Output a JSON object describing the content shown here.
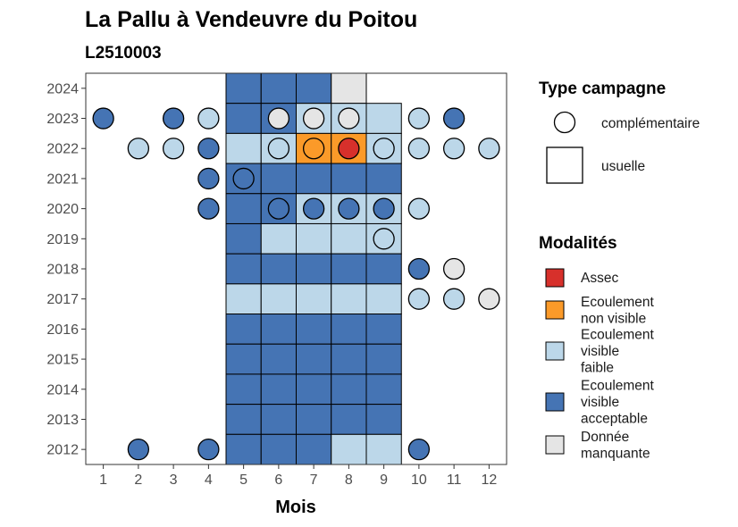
{
  "chart_data": {
    "type": "heatmap",
    "title": "La Pallu à Vendeuvre du Poitou",
    "subtitle": "L2510003",
    "xlabel": "Mois",
    "ylabel": "",
    "x_ticks": [
      1,
      2,
      3,
      4,
      5,
      6,
      7,
      8,
      9,
      10,
      11,
      12
    ],
    "y_ticks": [
      2012,
      2013,
      2014,
      2015,
      2016,
      2017,
      2018,
      2019,
      2020,
      2021,
      2022,
      2023,
      2024
    ],
    "xlim": [
      0.5,
      12.5
    ],
    "ylim": [
      2011.5,
      2024.5
    ],
    "grid": false,
    "colors": {
      "Assec": "#d7302b",
      "Ecoulement non visible": "#fb9a29",
      "Ecoulement visible faible": "#bcd7e9",
      "Ecoulement visible acceptable": "#4574b4",
      "Donnée manquante": "#e5e5e5"
    },
    "legends": {
      "type_campagne": {
        "title": "Type campagne",
        "items": [
          {
            "key": "complementaire",
            "label": "complémentaire",
            "shape": "circle"
          },
          {
            "key": "usuelle",
            "label": "usuelle",
            "shape": "square"
          }
        ]
      },
      "modalites": {
        "title": "Modalités",
        "items": [
          {
            "key": "Assec",
            "lines": [
              "Assec"
            ]
          },
          {
            "key": "Ecoulement non visible",
            "lines": [
              "Ecoulement",
              "non visible"
            ]
          },
          {
            "key": "Ecoulement visible faible",
            "lines": [
              "Ecoulement",
              "visible",
              "faible"
            ]
          },
          {
            "key": "Ecoulement visible acceptable",
            "lines": [
              "Ecoulement",
              "visible",
              "acceptable"
            ]
          },
          {
            "key": "Donnée manquante",
            "lines": [
              "Donnée",
              "manquante"
            ]
          }
        ]
      }
    },
    "usuelle": [
      {
        "year": 2024,
        "month": 5,
        "modalite": "Ecoulement visible acceptable"
      },
      {
        "year": 2024,
        "month": 6,
        "modalite": "Ecoulement visible acceptable"
      },
      {
        "year": 2024,
        "month": 7,
        "modalite": "Ecoulement visible acceptable"
      },
      {
        "year": 2024,
        "month": 8,
        "modalite": "Donnée manquante"
      },
      {
        "year": 2023,
        "month": 5,
        "modalite": "Ecoulement visible acceptable"
      },
      {
        "year": 2023,
        "month": 6,
        "modalite": "Ecoulement visible acceptable"
      },
      {
        "year": 2023,
        "month": 7,
        "modalite": "Ecoulement visible faible"
      },
      {
        "year": 2023,
        "month": 8,
        "modalite": "Ecoulement visible faible"
      },
      {
        "year": 2023,
        "month": 9,
        "modalite": "Ecoulement visible faible"
      },
      {
        "year": 2022,
        "month": 5,
        "modalite": "Ecoulement visible faible"
      },
      {
        "year": 2022,
        "month": 6,
        "modalite": "Ecoulement visible faible"
      },
      {
        "year": 2022,
        "month": 7,
        "modalite": "Ecoulement non visible"
      },
      {
        "year": 2022,
        "month": 8,
        "modalite": "Ecoulement non visible"
      },
      {
        "year": 2022,
        "month": 9,
        "modalite": "Ecoulement visible faible"
      },
      {
        "year": 2021,
        "month": 5,
        "modalite": "Ecoulement visible acceptable"
      },
      {
        "year": 2021,
        "month": 6,
        "modalite": "Ecoulement visible acceptable"
      },
      {
        "year": 2021,
        "month": 7,
        "modalite": "Ecoulement visible acceptable"
      },
      {
        "year": 2021,
        "month": 8,
        "modalite": "Ecoulement visible acceptable"
      },
      {
        "year": 2021,
        "month": 9,
        "modalite": "Ecoulement visible acceptable"
      },
      {
        "year": 2020,
        "month": 5,
        "modalite": "Ecoulement visible acceptable"
      },
      {
        "year": 2020,
        "month": 6,
        "modalite": "Ecoulement visible acceptable"
      },
      {
        "year": 2020,
        "month": 7,
        "modalite": "Ecoulement visible faible"
      },
      {
        "year": 2020,
        "month": 8,
        "modalite": "Ecoulement visible faible"
      },
      {
        "year": 2020,
        "month": 9,
        "modalite": "Ecoulement visible faible"
      },
      {
        "year": 2019,
        "month": 5,
        "modalite": "Ecoulement visible acceptable"
      },
      {
        "year": 2019,
        "month": 6,
        "modalite": "Ecoulement visible faible"
      },
      {
        "year": 2019,
        "month": 7,
        "modalite": "Ecoulement visible faible"
      },
      {
        "year": 2019,
        "month": 8,
        "modalite": "Ecoulement visible faible"
      },
      {
        "year": 2019,
        "month": 9,
        "modalite": "Ecoulement visible faible"
      },
      {
        "year": 2018,
        "month": 5,
        "modalite": "Ecoulement visible acceptable"
      },
      {
        "year": 2018,
        "month": 6,
        "modalite": "Ecoulement visible acceptable"
      },
      {
        "year": 2018,
        "month": 7,
        "modalite": "Ecoulement visible acceptable"
      },
      {
        "year": 2018,
        "month": 8,
        "modalite": "Ecoulement visible acceptable"
      },
      {
        "year": 2018,
        "month": 9,
        "modalite": "Ecoulement visible acceptable"
      },
      {
        "year": 2017,
        "month": 5,
        "modalite": "Ecoulement visible faible"
      },
      {
        "year": 2017,
        "month": 6,
        "modalite": "Ecoulement visible faible"
      },
      {
        "year": 2017,
        "month": 7,
        "modalite": "Ecoulement visible faible"
      },
      {
        "year": 2017,
        "month": 8,
        "modalite": "Ecoulement visible faible"
      },
      {
        "year": 2017,
        "month": 9,
        "modalite": "Ecoulement visible faible"
      },
      {
        "year": 2016,
        "month": 5,
        "modalite": "Ecoulement visible acceptable"
      },
      {
        "year": 2016,
        "month": 6,
        "modalite": "Ecoulement visible acceptable"
      },
      {
        "year": 2016,
        "month": 7,
        "modalite": "Ecoulement visible acceptable"
      },
      {
        "year": 2016,
        "month": 8,
        "modalite": "Ecoulement visible acceptable"
      },
      {
        "year": 2016,
        "month": 9,
        "modalite": "Ecoulement visible acceptable"
      },
      {
        "year": 2015,
        "month": 5,
        "modalite": "Ecoulement visible acceptable"
      },
      {
        "year": 2015,
        "month": 6,
        "modalite": "Ecoulement visible acceptable"
      },
      {
        "year": 2015,
        "month": 7,
        "modalite": "Ecoulement visible acceptable"
      },
      {
        "year": 2015,
        "month": 8,
        "modalite": "Ecoulement visible acceptable"
      },
      {
        "year": 2015,
        "month": 9,
        "modalite": "Ecoulement visible acceptable"
      },
      {
        "year": 2014,
        "month": 5,
        "modalite": "Ecoulement visible acceptable"
      },
      {
        "year": 2014,
        "month": 6,
        "modalite": "Ecoulement visible acceptable"
      },
      {
        "year": 2014,
        "month": 7,
        "modalite": "Ecoulement visible acceptable"
      },
      {
        "year": 2014,
        "month": 8,
        "modalite": "Ecoulement visible acceptable"
      },
      {
        "year": 2014,
        "month": 9,
        "modalite": "Ecoulement visible acceptable"
      },
      {
        "year": 2013,
        "month": 5,
        "modalite": "Ecoulement visible acceptable"
      },
      {
        "year": 2013,
        "month": 6,
        "modalite": "Ecoulement visible acceptable"
      },
      {
        "year": 2013,
        "month": 7,
        "modalite": "Ecoulement visible acceptable"
      },
      {
        "year": 2013,
        "month": 8,
        "modalite": "Ecoulement visible acceptable"
      },
      {
        "year": 2013,
        "month": 9,
        "modalite": "Ecoulement visible acceptable"
      },
      {
        "year": 2012,
        "month": 5,
        "modalite": "Ecoulement visible acceptable"
      },
      {
        "year": 2012,
        "month": 6,
        "modalite": "Ecoulement visible acceptable"
      },
      {
        "year": 2012,
        "month": 7,
        "modalite": "Ecoulement visible acceptable"
      },
      {
        "year": 2012,
        "month": 8,
        "modalite": "Ecoulement visible faible"
      },
      {
        "year": 2012,
        "month": 9,
        "modalite": "Ecoulement visible faible"
      }
    ],
    "complementaire": [
      {
        "year": 2023,
        "month": 1,
        "modalite": "Ecoulement visible acceptable"
      },
      {
        "year": 2023,
        "month": 3,
        "modalite": "Ecoulement visible acceptable"
      },
      {
        "year": 2023,
        "month": 4,
        "modalite": "Ecoulement visible faible"
      },
      {
        "year": 2023,
        "month": 6,
        "modalite": "Donnée manquante"
      },
      {
        "year": 2023,
        "month": 7,
        "modalite": "Donnée manquante"
      },
      {
        "year": 2023,
        "month": 8,
        "modalite": "Donnée manquante"
      },
      {
        "year": 2023,
        "month": 10,
        "modalite": "Ecoulement visible faible"
      },
      {
        "year": 2023,
        "month": 11,
        "modalite": "Ecoulement visible acceptable"
      },
      {
        "year": 2022,
        "month": 2,
        "modalite": "Ecoulement visible faible"
      },
      {
        "year": 2022,
        "month": 3,
        "modalite": "Ecoulement visible faible"
      },
      {
        "year": 2022,
        "month": 4,
        "modalite": "Ecoulement visible acceptable"
      },
      {
        "year": 2022,
        "month": 6,
        "modalite": "Ecoulement visible faible"
      },
      {
        "year": 2022,
        "month": 7,
        "modalite": "Ecoulement non visible"
      },
      {
        "year": 2022,
        "month": 8,
        "modalite": "Assec"
      },
      {
        "year": 2022,
        "month": 9,
        "modalite": "Ecoulement visible faible"
      },
      {
        "year": 2022,
        "month": 10,
        "modalite": "Ecoulement visible faible"
      },
      {
        "year": 2022,
        "month": 11,
        "modalite": "Ecoulement visible faible"
      },
      {
        "year": 2022,
        "month": 12,
        "modalite": "Ecoulement visible faible"
      },
      {
        "year": 2021,
        "month": 4,
        "modalite": "Ecoulement visible acceptable"
      },
      {
        "year": 2021,
        "month": 5,
        "modalite": "Ecoulement visible acceptable"
      },
      {
        "year": 2020,
        "month": 4,
        "modalite": "Ecoulement visible acceptable"
      },
      {
        "year": 2020,
        "month": 6,
        "modalite": "Ecoulement visible acceptable"
      },
      {
        "year": 2020,
        "month": 7,
        "modalite": "Ecoulement visible acceptable"
      },
      {
        "year": 2020,
        "month": 8,
        "modalite": "Ecoulement visible acceptable"
      },
      {
        "year": 2020,
        "month": 9,
        "modalite": "Ecoulement visible acceptable"
      },
      {
        "year": 2020,
        "month": 10,
        "modalite": "Ecoulement visible faible"
      },
      {
        "year": 2019,
        "month": 9,
        "modalite": "Ecoulement visible faible"
      },
      {
        "year": 2018,
        "month": 10,
        "modalite": "Ecoulement visible acceptable"
      },
      {
        "year": 2018,
        "month": 11,
        "modalite": "Donnée manquante"
      },
      {
        "year": 2017,
        "month": 10,
        "modalite": "Ecoulement visible faible"
      },
      {
        "year": 2017,
        "month": 11,
        "modalite": "Ecoulement visible faible"
      },
      {
        "year": 2017,
        "month": 12,
        "modalite": "Donnée manquante"
      },
      {
        "year": 2012,
        "month": 2,
        "modalite": "Ecoulement visible acceptable"
      },
      {
        "year": 2012,
        "month": 4,
        "modalite": "Ecoulement visible acceptable"
      },
      {
        "year": 2012,
        "month": 10,
        "modalite": "Ecoulement visible acceptable"
      }
    ]
  }
}
